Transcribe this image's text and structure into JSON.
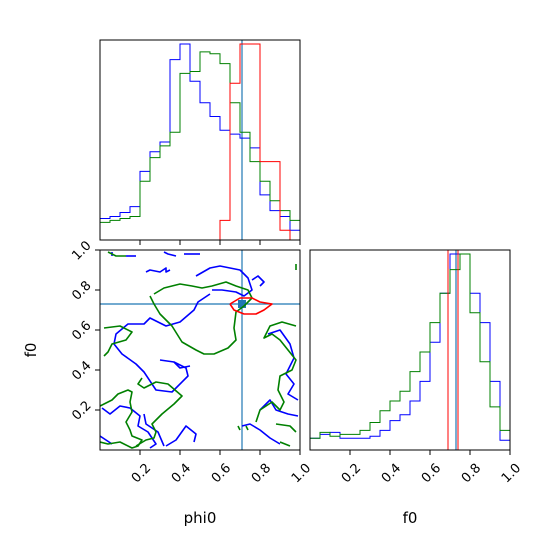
{
  "chart_data": {
    "type": "corner",
    "parameters": [
      "phi0",
      "f0"
    ],
    "xlabels": {
      "phi0": "phi0",
      "f0": "f0"
    },
    "ylabel": "f0",
    "range": [
      0,
      1
    ],
    "ticks": [
      0.2,
      0.4,
      0.6,
      0.8,
      1.0
    ],
    "tick_labels": [
      "0.2",
      "0.4",
      "0.6",
      "0.8",
      "1.0"
    ],
    "truth": {
      "phi0": 0.71,
      "f0": 0.73
    },
    "colors": {
      "blue": "#0000ff",
      "green": "#008000",
      "red": "#ff0000",
      "truth": "#1f77b4"
    },
    "series": [
      {
        "color": "blue",
        "hist_phi0": {
          "edges": [
            0,
            0.05,
            0.1,
            0.15,
            0.2,
            0.25,
            0.3,
            0.35,
            0.4,
            0.45,
            0.5,
            0.55,
            0.6,
            0.65,
            0.7,
            0.75,
            0.8,
            0.85,
            0.9,
            0.95,
            1.0
          ],
          "heights": [
            0.11,
            0.12,
            0.14,
            0.17,
            0.35,
            0.45,
            0.5,
            0.92,
            1.0,
            0.81,
            0.7,
            0.63,
            0.56,
            0.54,
            0.52,
            0.47,
            0.23,
            0.15,
            0.12,
            0.05
          ]
        },
        "hist_f0": {
          "edges": [
            0,
            0.05,
            0.1,
            0.15,
            0.2,
            0.25,
            0.3,
            0.35,
            0.4,
            0.45,
            0.5,
            0.55,
            0.6,
            0.65,
            0.7,
            0.75,
            0.8,
            0.85,
            0.9,
            0.95,
            1.0
          ],
          "heights": [
            0.06,
            0.08,
            0.09,
            0.06,
            0.06,
            0.06,
            0.07,
            0.1,
            0.15,
            0.18,
            0.25,
            0.35,
            0.55,
            0.8,
            1.0,
            1.0,
            0.8,
            0.65,
            0.35,
            0.05
          ]
        },
        "contours": [
          [
            [
              0.06,
              0.97
            ],
            [
              0.06,
              0.99
            ]
          ],
          [
            [
              0.13,
              0.97
            ],
            [
              0.18,
              0.97
            ]
          ],
          [
            [
              0.32,
              0.99
            ],
            [
              0.34,
              0.98
            ],
            [
              0.38,
              0.97
            ]
          ],
          [
            [
              0.42,
              0.98
            ],
            [
              0.5,
              0.98
            ]
          ],
          [
            [
              0.23,
              0.89
            ],
            [
              0.25,
              0.9
            ],
            [
              0.3,
              0.89
            ],
            [
              0.33,
              0.91
            ],
            [
              0.33,
              0.89
            ],
            [
              0.35,
              0.9
            ]
          ],
          [
            [
              0.55,
              0.78
            ],
            [
              0.49,
              0.74
            ],
            [
              0.47,
              0.7
            ],
            [
              0.4,
              0.64
            ],
            [
              0.33,
              0.62
            ],
            [
              0.25,
              0.66
            ],
            [
              0.22,
              0.63
            ],
            [
              0.14,
              0.63
            ],
            [
              0.08,
              0.58
            ],
            [
              0.07,
              0.53
            ],
            [
              0.11,
              0.48
            ],
            [
              0.18,
              0.43
            ],
            [
              0.22,
              0.39
            ],
            [
              0.28,
              0.3
            ],
            [
              0.36,
              0.29
            ],
            [
              0.44,
              0.37
            ],
            [
              0.43,
              0.41
            ],
            [
              0.37,
              0.44
            ],
            [
              0.3,
              0.45
            ]
          ],
          [
            [
              0.48,
              0.87
            ],
            [
              0.55,
              0.91
            ],
            [
              0.6,
              0.92
            ],
            [
              0.65,
              0.91
            ],
            [
              0.7,
              0.9
            ],
            [
              0.74,
              0.86
            ],
            [
              0.76,
              0.8
            ],
            [
              0.72,
              0.77
            ],
            [
              0.68,
              0.79
            ],
            [
              0.61,
              0.8
            ],
            [
              0.56,
              0.8
            ]
          ],
          [
            [
              0.76,
              0.85
            ],
            [
              0.79,
              0.87
            ],
            [
              0.82,
              0.84
            ],
            [
              0.8,
              0.82
            ]
          ],
          [
            [
              0.37,
              0.44
            ],
            [
              0.4,
              0.41
            ],
            [
              0.45,
              0.42
            ]
          ],
          [
            [
              0.01,
              0.21
            ],
            [
              0.05,
              0.18
            ],
            [
              0.1,
              0.22
            ],
            [
              0.15,
              0.21
            ],
            [
              0.2,
              0.17
            ],
            [
              0.19,
              0.12
            ],
            [
              0.24,
              0.09
            ],
            [
              0.28,
              0.03
            ],
            [
              0.25,
              0.01
            ]
          ],
          [
            [
              0.32,
              0.02
            ],
            [
              0.29,
              0.09
            ],
            [
              0.23,
              0.13
            ],
            [
              0.22,
              0.18
            ]
          ],
          [
            [
              0.33,
              0.02
            ],
            [
              0.38,
              0.05
            ],
            [
              0.43,
              0.12
            ],
            [
              0.48,
              0.08
            ],
            [
              0.47,
              0.04
            ]
          ],
          [
            [
              0.71,
              0.12
            ],
            [
              0.75,
              0.13
            ],
            [
              0.8,
              0.1
            ],
            [
              0.85,
              0.06
            ],
            [
              0.9,
              0.03
            ]
          ],
          [
            [
              0.84,
              0.58
            ],
            [
              0.9,
              0.6
            ],
            [
              0.95,
              0.53
            ],
            [
              0.97,
              0.46
            ],
            [
              0.93,
              0.38
            ],
            [
              0.97,
              0.33
            ],
            [
              0.94,
              0.28
            ],
            [
              0.99,
              0.25
            ]
          ],
          [
            [
              0.8,
              0.2
            ],
            [
              0.85,
              0.25
            ],
            [
              0.88,
              0.2
            ],
            [
              0.94,
              0.18
            ],
            [
              0.99,
              0.17
            ]
          ],
          [
            [
              0.0,
              0.07
            ],
            [
              0.03,
              0.05
            ],
            [
              0.06,
              0.03
            ]
          ]
        ]
      },
      {
        "color": "green",
        "hist_phi0": {
          "edges": [
            0,
            0.05,
            0.1,
            0.15,
            0.2,
            0.25,
            0.3,
            0.35,
            0.4,
            0.45,
            0.5,
            0.55,
            0.6,
            0.65,
            0.7,
            0.75,
            0.8,
            0.85,
            0.9,
            0.95,
            1.0
          ],
          "heights": [
            0.09,
            0.1,
            0.11,
            0.12,
            0.3,
            0.42,
            0.48,
            0.55,
            0.85,
            0.86,
            0.96,
            0.95,
            0.9,
            0.7,
            0.55,
            0.4,
            0.3,
            0.2,
            0.15,
            0.1
          ]
        },
        "hist_f0": {
          "edges": [
            0,
            0.05,
            0.1,
            0.15,
            0.2,
            0.25,
            0.3,
            0.35,
            0.4,
            0.45,
            0.5,
            0.55,
            0.6,
            0.65,
            0.7,
            0.75,
            0.8,
            0.85,
            0.9,
            0.95,
            1.0
          ],
          "heights": [
            0.06,
            0.09,
            0.07,
            0.08,
            0.08,
            0.1,
            0.14,
            0.2,
            0.25,
            0.3,
            0.4,
            0.5,
            0.65,
            0.8,
            0.92,
            1.0,
            0.7,
            0.45,
            0.22,
            0.1
          ]
        },
        "contours": [
          [
            [
              0.04,
              0.99
            ],
            [
              0.08,
              0.97
            ],
            [
              0.13,
              0.97
            ]
          ],
          [
            [
              0.98,
              0.9
            ],
            [
              0.98,
              0.93
            ]
          ],
          [
            [
              0.27,
              0.78
            ],
            [
              0.32,
              0.81
            ],
            [
              0.4,
              0.83
            ],
            [
              0.46,
              0.82
            ],
            [
              0.51,
              0.81
            ],
            [
              0.56,
              0.82
            ],
            [
              0.63,
              0.84
            ],
            [
              0.68,
              0.82
            ],
            [
              0.74,
              0.8
            ],
            [
              0.76,
              0.76
            ],
            [
              0.72,
              0.72
            ],
            [
              0.68,
              0.69
            ],
            [
              0.67,
              0.61
            ],
            [
              0.68,
              0.55
            ],
            [
              0.64,
              0.51
            ],
            [
              0.57,
              0.48
            ],
            [
              0.52,
              0.48
            ],
            [
              0.48,
              0.5
            ],
            [
              0.41,
              0.54
            ],
            [
              0.36,
              0.62
            ],
            [
              0.3,
              0.68
            ],
            [
              0.27,
              0.73
            ],
            [
              0.25,
              0.77
            ]
          ],
          [
            [
              0.7,
              0.1
            ],
            [
              0.69,
              0.12
            ]
          ],
          [
            [
              0.74,
              0.1
            ],
            [
              0.73,
              0.12
            ]
          ],
          [
            [
              0.02,
              0.61
            ],
            [
              0.1,
              0.62
            ],
            [
              0.16,
              0.59
            ],
            [
              0.13,
              0.55
            ],
            [
              0.06,
              0.53
            ],
            [
              0.04,
              0.49
            ],
            [
              0.02,
              0.47
            ]
          ],
          [
            [
              0.0,
              0.22
            ],
            [
              0.06,
              0.25
            ],
            [
              0.09,
              0.28
            ],
            [
              0.14,
              0.3
            ],
            [
              0.16,
              0.29
            ],
            [
              0.15,
              0.24
            ],
            [
              0.16,
              0.19
            ],
            [
              0.13,
              0.14
            ],
            [
              0.15,
              0.1
            ],
            [
              0.16,
              0.07
            ],
            [
              0.21,
              0.05
            ],
            [
              0.19,
              0.02
            ],
            [
              0.16,
              0.01
            ],
            [
              0.1,
              0.04
            ],
            [
              0.04,
              0.03
            ],
            [
              0.0,
              0.04
            ]
          ],
          [
            [
              0.18,
              0.02
            ],
            [
              0.23,
              0.05
            ],
            [
              0.27,
              0.06
            ],
            [
              0.28,
              0.09
            ],
            [
              0.26,
              0.13
            ],
            [
              0.31,
              0.18
            ],
            [
              0.37,
              0.23
            ],
            [
              0.41,
              0.27
            ],
            [
              0.34,
              0.33
            ],
            [
              0.28,
              0.34
            ],
            [
              0.22,
              0.31
            ],
            [
              0.19,
              0.33
            ],
            [
              0.21,
              0.36
            ]
          ],
          [
            [
              0.78,
              0.14
            ],
            [
              0.8,
              0.2
            ],
            [
              0.86,
              0.24
            ],
            [
              0.9,
              0.2
            ],
            [
              0.92,
              0.24
            ],
            [
              0.89,
              0.3
            ],
            [
              0.9,
              0.37
            ],
            [
              0.96,
              0.4
            ],
            [
              0.98,
              0.45
            ],
            [
              0.94,
              0.5
            ],
            [
              0.9,
              0.55
            ],
            [
              0.86,
              0.58
            ],
            [
              0.82,
              0.56
            ],
            [
              0.85,
              0.62
            ],
            [
              0.91,
              0.64
            ],
            [
              0.98,
              0.62
            ]
          ],
          [
            [
              0.9,
              0.04
            ],
            [
              0.95,
              0.02
            ]
          ],
          [
            [
              0.88,
              0.13
            ],
            [
              0.95,
              0.12
            ],
            [
              0.98,
              0.09
            ]
          ]
        ]
      },
      {
        "color": "red",
        "hist_phi0": {
          "edges": [
            0,
            0.05,
            0.1,
            0.15,
            0.2,
            0.25,
            0.3,
            0.35,
            0.4,
            0.45,
            0.5,
            0.55,
            0.6,
            0.65,
            0.7,
            0.75,
            0.8,
            0.85,
            0.9,
            0.95,
            1.0
          ],
          "heights": [
            0,
            0,
            0,
            0,
            0,
            0,
            0,
            0,
            0,
            0,
            0,
            0,
            0.1,
            0.8,
            1.0,
            1.0,
            0.4,
            0.4,
            0.05,
            0
          ]
        },
        "hist_f0_lines": [
          0.69,
          0.74
        ],
        "contours": [
          [
            [
              0.65,
              0.73
            ],
            [
              0.7,
              0.76
            ],
            [
              0.76,
              0.76
            ],
            [
              0.8,
              0.74
            ],
            [
              0.86,
              0.73
            ],
            [
              0.82,
              0.7
            ],
            [
              0.78,
              0.68
            ],
            [
              0.72,
              0.68
            ],
            [
              0.67,
              0.7
            ],
            [
              0.65,
              0.73
            ]
          ]
        ]
      }
    ]
  }
}
